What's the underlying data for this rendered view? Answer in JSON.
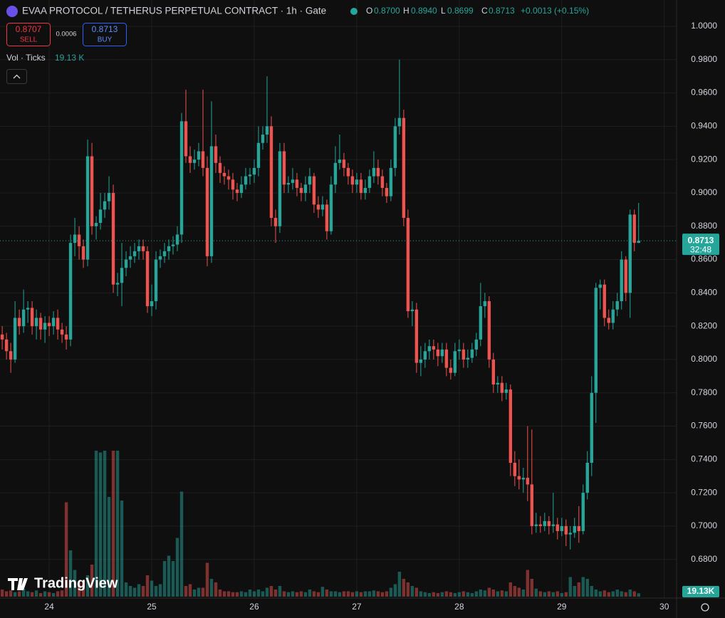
{
  "header": {
    "title": "EVAA PROTOCOL / TETHERUS PERPETUAL CONTRACT · 1h · Gate",
    "ohlc": [
      [
        "O",
        "0.8700"
      ],
      [
        "H",
        "0.8940"
      ],
      [
        "L",
        "0.8699"
      ],
      [
        "C",
        "0.8713"
      ]
    ],
    "change": "+0.0013 (+0.15%)"
  },
  "trade": {
    "sell_price": "0.8707",
    "sell": "SELL",
    "spread": "0.0006",
    "buy_price": "0.8713",
    "buy": "BUY"
  },
  "logo": "TradingView",
  "chart_data": {
    "type": "candlestick",
    "grid": true,
    "up_color": "#26a69a",
    "down_color": "#ef5350",
    "xlim": [
      23.52,
      30.12
    ],
    "xticks": [
      24,
      25,
      26,
      27,
      28,
      29,
      30
    ],
    "ylim": [
      0.6568,
      1.0158
    ],
    "yticks": [
      {
        "value": 0.68,
        "label": "0.6800"
      },
      {
        "value": 0.7,
        "label": "0.7000"
      },
      {
        "value": 0.72,
        "label": "0.7200"
      },
      {
        "value": 0.74,
        "label": "0.7400"
      },
      {
        "value": 0.76,
        "label": "0.7600"
      },
      {
        "value": 0.78,
        "label": "0.7800"
      },
      {
        "value": 0.8,
        "label": "0.8000"
      },
      {
        "value": 0.82,
        "label": "0.8200"
      },
      {
        "value": 0.84,
        "label": "0.8400"
      },
      {
        "value": 0.86,
        "label": "0.8600"
      },
      {
        "value": 0.88,
        "label": "0.8800"
      },
      {
        "value": 0.9,
        "label": "0.9000"
      },
      {
        "value": 0.92,
        "label": "0.9200"
      },
      {
        "value": 0.94,
        "label": "0.9400"
      },
      {
        "value": 0.96,
        "label": "0.9600"
      },
      {
        "value": 0.98,
        "label": "0.9800"
      },
      {
        "value": 1.0,
        "label": "1.0000"
      }
    ],
    "x": [
      23.5417,
      23.5833,
      23.625,
      23.6667,
      23.7083,
      23.75,
      23.7917,
      23.8333,
      23.875,
      23.9167,
      23.9583,
      24,
      24.0417,
      24.0833,
      24.125,
      24.1667,
      24.2083,
      24.25,
      24.2917,
      24.3333,
      24.375,
      24.4167,
      24.4583,
      24.5,
      24.5417,
      24.5833,
      24.625,
      24.6667,
      24.7083,
      24.75,
      24.7917,
      24.8333,
      24.875,
      24.9167,
      24.9583,
      25,
      25.0417,
      25.0833,
      25.125,
      25.1667,
      25.2083,
      25.25,
      25.2917,
      25.3333,
      25.375,
      25.4167,
      25.4583,
      25.5,
      25.5417,
      25.5833,
      25.625,
      25.6667,
      25.7083,
      25.75,
      25.7917,
      25.8333,
      25.875,
      25.9167,
      25.9583,
      26,
      26.0417,
      26.0833,
      26.125,
      26.1667,
      26.2083,
      26.25,
      26.2917,
      26.3333,
      26.375,
      26.4167,
      26.4583,
      26.5,
      26.5417,
      26.5833,
      26.625,
      26.6667,
      26.7083,
      26.75,
      26.7917,
      26.8333,
      26.875,
      26.9167,
      26.9583,
      27,
      27.0417,
      27.0833,
      27.125,
      27.1667,
      27.2083,
      27.25,
      27.2917,
      27.3333,
      27.375,
      27.4167,
      27.4583,
      27.5,
      27.5417,
      27.5833,
      27.625,
      27.6667,
      27.7083,
      27.75,
      27.7917,
      27.8333,
      27.875,
      27.9167,
      27.9583,
      28,
      28.0417,
      28.0833,
      28.125,
      28.1667,
      28.2083,
      28.25,
      28.2917,
      28.3333,
      28.375,
      28.4167,
      28.4583,
      28.5,
      28.5417,
      28.5833,
      28.625,
      28.6667,
      28.7083,
      28.75,
      28.7917,
      28.8333,
      28.875,
      28.9167,
      28.9583,
      29,
      29.0417,
      29.0833,
      29.125,
      29.1667,
      29.2083,
      29.25,
      29.2917,
      29.3333,
      29.375,
      29.4167,
      29.4583,
      29.5,
      29.5417,
      29.5833,
      29.625,
      29.6667,
      29.7083,
      29.75
    ],
    "candles": [
      [
        0.815,
        0.82,
        0.806,
        0.812
      ],
      [
        0.812,
        0.816,
        0.8,
        0.805
      ],
      [
        0.805,
        0.81,
        0.792,
        0.8
      ],
      [
        0.8,
        0.835,
        0.798,
        0.825
      ],
      [
        0.825,
        0.83,
        0.815,
        0.82
      ],
      [
        0.82,
        0.842,
        0.816,
        0.83
      ],
      [
        0.83,
        0.835,
        0.822,
        0.831
      ],
      [
        0.831,
        0.835,
        0.815,
        0.82
      ],
      [
        0.82,
        0.83,
        0.812,
        0.825
      ],
      [
        0.825,
        0.828,
        0.812,
        0.818
      ],
      [
        0.818,
        0.826,
        0.81,
        0.822
      ],
      [
        0.822,
        0.826,
        0.814,
        0.82
      ],
      [
        0.82,
        0.829,
        0.815,
        0.825
      ],
      [
        0.825,
        0.83,
        0.812,
        0.818
      ],
      [
        0.818,
        0.822,
        0.81,
        0.815
      ],
      [
        0.815,
        0.82,
        0.806,
        0.812
      ],
      [
        0.812,
        0.875,
        0.808,
        0.87
      ],
      [
        0.87,
        0.885,
        0.862,
        0.875
      ],
      [
        0.875,
        0.88,
        0.86,
        0.868
      ],
      [
        0.868,
        0.872,
        0.855,
        0.86
      ],
      [
        0.86,
        0.932,
        0.856,
        0.922
      ],
      [
        0.922,
        0.93,
        0.875,
        0.88
      ],
      [
        0.88,
        0.886,
        0.872,
        0.882
      ],
      [
        0.882,
        0.9,
        0.878,
        0.89
      ],
      [
        0.89,
        0.9,
        0.885,
        0.895
      ],
      [
        0.895,
        0.91,
        0.89,
        0.9
      ],
      [
        0.9,
        0.905,
        0.84,
        0.845
      ],
      [
        0.845,
        0.852,
        0.838,
        0.846
      ],
      [
        0.846,
        0.87,
        0.832,
        0.855
      ],
      [
        0.855,
        0.865,
        0.85,
        0.86
      ],
      [
        0.86,
        0.868,
        0.855,
        0.862
      ],
      [
        0.862,
        0.87,
        0.858,
        0.865
      ],
      [
        0.865,
        0.872,
        0.86,
        0.868
      ],
      [
        0.868,
        0.872,
        0.86,
        0.865
      ],
      [
        0.865,
        0.868,
        0.828,
        0.832
      ],
      [
        0.832,
        0.845,
        0.826,
        0.835
      ],
      [
        0.835,
        0.865,
        0.83,
        0.86
      ],
      [
        0.86,
        0.866,
        0.855,
        0.862
      ],
      [
        0.862,
        0.87,
        0.858,
        0.865
      ],
      [
        0.865,
        0.872,
        0.86,
        0.868
      ],
      [
        0.868,
        0.874,
        0.863,
        0.869
      ],
      [
        0.869,
        0.88,
        0.865,
        0.875
      ],
      [
        0.875,
        0.948,
        0.87,
        0.943
      ],
      [
        0.943,
        0.962,
        0.918,
        0.922
      ],
      [
        0.922,
        0.928,
        0.912,
        0.918
      ],
      [
        0.918,
        0.926,
        0.914,
        0.92
      ],
      [
        0.92,
        0.93,
        0.916,
        0.925
      ],
      [
        0.925,
        0.962,
        0.91,
        0.915
      ],
      [
        0.915,
        0.922,
        0.856,
        0.862
      ],
      [
        0.862,
        0.955,
        0.858,
        0.928
      ],
      [
        0.928,
        0.935,
        0.912,
        0.918
      ],
      [
        0.918,
        0.922,
        0.906,
        0.912
      ],
      [
        0.912,
        0.916,
        0.905,
        0.91
      ],
      [
        0.91,
        0.914,
        0.902,
        0.908
      ],
      [
        0.908,
        0.912,
        0.896,
        0.902
      ],
      [
        0.902,
        0.906,
        0.895,
        0.9
      ],
      [
        0.9,
        0.91,
        0.897,
        0.905
      ],
      [
        0.905,
        0.915,
        0.902,
        0.91
      ],
      [
        0.91,
        0.915,
        0.905,
        0.911
      ],
      [
        0.911,
        0.92,
        0.906,
        0.915
      ],
      [
        0.915,
        0.94,
        0.91,
        0.93
      ],
      [
        0.93,
        0.94,
        0.926,
        0.935
      ],
      [
        0.935,
        0.97,
        0.93,
        0.94
      ],
      [
        0.94,
        0.946,
        0.88,
        0.885
      ],
      [
        0.885,
        0.89,
        0.87,
        0.88
      ],
      [
        0.88,
        0.93,
        0.876,
        0.925
      ],
      [
        0.925,
        0.93,
        0.9,
        0.905
      ],
      [
        0.905,
        0.91,
        0.9,
        0.906
      ],
      [
        0.906,
        0.915,
        0.902,
        0.908
      ],
      [
        0.908,
        0.912,
        0.898,
        0.903
      ],
      [
        0.903,
        0.906,
        0.895,
        0.9
      ],
      [
        0.9,
        0.91,
        0.895,
        0.905
      ],
      [
        0.905,
        0.915,
        0.9,
        0.91
      ],
      [
        0.91,
        0.912,
        0.888,
        0.893
      ],
      [
        0.893,
        0.898,
        0.885,
        0.89
      ],
      [
        0.89,
        0.898,
        0.886,
        0.893
      ],
      [
        0.893,
        0.896,
        0.872,
        0.877
      ],
      [
        0.877,
        0.91,
        0.875,
        0.905
      ],
      [
        0.905,
        0.928,
        0.9,
        0.918
      ],
      [
        0.918,
        0.935,
        0.914,
        0.92
      ],
      [
        0.92,
        0.924,
        0.91,
        0.915
      ],
      [
        0.915,
        0.918,
        0.905,
        0.91
      ],
      [
        0.91,
        0.914,
        0.9,
        0.905
      ],
      [
        0.905,
        0.912,
        0.9,
        0.908
      ],
      [
        0.908,
        0.912,
        0.896,
        0.9
      ],
      [
        0.9,
        0.908,
        0.896,
        0.903
      ],
      [
        0.903,
        0.914,
        0.9,
        0.91
      ],
      [
        0.91,
        0.925,
        0.906,
        0.915
      ],
      [
        0.915,
        0.92,
        0.905,
        0.91
      ],
      [
        0.91,
        0.914,
        0.898,
        0.903
      ],
      [
        0.903,
        0.906,
        0.894,
        0.898
      ],
      [
        0.898,
        0.92,
        0.895,
        0.915
      ],
      [
        0.915,
        0.945,
        0.91,
        0.94
      ],
      [
        0.94,
        0.98,
        0.935,
        0.945
      ],
      [
        0.945,
        0.95,
        0.88,
        0.885
      ],
      [
        0.885,
        0.89,
        0.825,
        0.829
      ],
      [
        0.829,
        0.835,
        0.82,
        0.83
      ],
      [
        0.83,
        0.834,
        0.792,
        0.798
      ],
      [
        0.798,
        0.808,
        0.79,
        0.8
      ],
      [
        0.8,
        0.81,
        0.795,
        0.805
      ],
      [
        0.805,
        0.812,
        0.8,
        0.808
      ],
      [
        0.808,
        0.812,
        0.8,
        0.806
      ],
      [
        0.806,
        0.81,
        0.796,
        0.802
      ],
      [
        0.802,
        0.81,
        0.798,
        0.806
      ],
      [
        0.806,
        0.81,
        0.79,
        0.795
      ],
      [
        0.795,
        0.8,
        0.788,
        0.792
      ],
      [
        0.792,
        0.81,
        0.79,
        0.805
      ],
      [
        0.805,
        0.812,
        0.8,
        0.806
      ],
      [
        0.806,
        0.81,
        0.795,
        0.8
      ],
      [
        0.8,
        0.806,
        0.795,
        0.801
      ],
      [
        0.801,
        0.81,
        0.798,
        0.806
      ],
      [
        0.806,
        0.816,
        0.802,
        0.812
      ],
      [
        0.812,
        0.846,
        0.808,
        0.832
      ],
      [
        0.832,
        0.84,
        0.825,
        0.835
      ],
      [
        0.835,
        0.838,
        0.795,
        0.8
      ],
      [
        0.8,
        0.804,
        0.78,
        0.785
      ],
      [
        0.785,
        0.79,
        0.78,
        0.786
      ],
      [
        0.786,
        0.79,
        0.775,
        0.78
      ],
      [
        0.78,
        0.786,
        0.776,
        0.782
      ],
      [
        0.782,
        0.785,
        0.73,
        0.738
      ],
      [
        0.738,
        0.745,
        0.724,
        0.73
      ],
      [
        0.73,
        0.74,
        0.722,
        0.728
      ],
      [
        0.728,
        0.735,
        0.72,
        0.729
      ],
      [
        0.729,
        0.76,
        0.715,
        0.725
      ],
      [
        0.725,
        0.758,
        0.695,
        0.7
      ],
      [
        0.7,
        0.708,
        0.696,
        0.701
      ],
      [
        0.701,
        0.706,
        0.696,
        0.7
      ],
      [
        0.7,
        0.708,
        0.697,
        0.703
      ],
      [
        0.703,
        0.706,
        0.695,
        0.7
      ],
      [
        0.7,
        0.72,
        0.696,
        0.701
      ],
      [
        0.701,
        0.705,
        0.692,
        0.697
      ],
      [
        0.697,
        0.705,
        0.694,
        0.7
      ],
      [
        0.7,
        0.704,
        0.688,
        0.695
      ],
      [
        0.695,
        0.7,
        0.686,
        0.696
      ],
      [
        0.696,
        0.705,
        0.693,
        0.7
      ],
      [
        0.7,
        0.712,
        0.69,
        0.697
      ],
      [
        0.697,
        0.725,
        0.695,
        0.72
      ],
      [
        0.72,
        0.745,
        0.716,
        0.738
      ],
      [
        0.738,
        0.79,
        0.73,
        0.78
      ],
      [
        0.78,
        0.846,
        0.762,
        0.843
      ],
      [
        0.843,
        0.848,
        0.83,
        0.845
      ],
      [
        0.845,
        0.848,
        0.82,
        0.825
      ],
      [
        0.825,
        0.83,
        0.818,
        0.822
      ],
      [
        0.822,
        0.835,
        0.818,
        0.83
      ],
      [
        0.83,
        0.84,
        0.826,
        0.835
      ],
      [
        0.835,
        0.865,
        0.83,
        0.86
      ],
      [
        0.86,
        0.862,
        0.835,
        0.84
      ],
      [
        0.84,
        0.89,
        0.825,
        0.887
      ],
      [
        0.887,
        0.89,
        0.865,
        0.87
      ],
      [
        0.87,
        0.894,
        0.8699,
        0.8713
      ]
    ],
    "volume": [
      40000,
      30000,
      35000,
      25000,
      30000,
      45000,
      30000,
      25000,
      35000,
      20000,
      30000,
      25000,
      20000,
      30000,
      35000,
      530000,
      260000,
      150000,
      80000,
      90000,
      120000,
      180000,
      820000,
      810000,
      820000,
      560000,
      820000,
      820000,
      540000,
      80000,
      60000,
      50000,
      70000,
      60000,
      120000,
      90000,
      60000,
      70000,
      200000,
      230000,
      200000,
      330000,
      590000,
      60000,
      70000,
      40000,
      50000,
      50000,
      190000,
      100000,
      80000,
      40000,
      30000,
      30000,
      25000,
      25000,
      30000,
      25000,
      40000,
      30000,
      40000,
      30000,
      50000,
      60000,
      40000,
      60000,
      30000,
      25000,
      30000,
      25000,
      30000,
      25000,
      40000,
      30000,
      25000,
      55000,
      40000,
      30000,
      30000,
      25000,
      30000,
      30000,
      25000,
      30000,
      25000,
      30000,
      30000,
      35000,
      30000,
      25000,
      30000,
      50000,
      70000,
      140000,
      100000,
      80000,
      60000,
      50000,
      30000,
      25000,
      20000,
      25000,
      20000,
      25000,
      30000,
      25000,
      20000,
      25000,
      30000,
      25000,
      20000,
      30000,
      40000,
      35000,
      50000,
      40000,
      30000,
      35000,
      30000,
      80000,
      60000,
      50000,
      40000,
      150000,
      100000,
      45000,
      30000,
      25000,
      30000,
      25000,
      30000,
      20000,
      25000,
      110000,
      60000,
      80000,
      110000,
      100000,
      60000,
      40000,
      30000,
      35000,
      25000,
      30000,
      40000,
      30000,
      25000,
      40000,
      30000,
      19130
    ],
    "volume_title": "Vol · Ticks",
    "volume_legend_label": "19.13 K",
    "volume_value_label": "19.13K",
    "last_price": {
      "value": 0.8713,
      "label": "0.8713"
    },
    "countdown": "32:48"
  }
}
